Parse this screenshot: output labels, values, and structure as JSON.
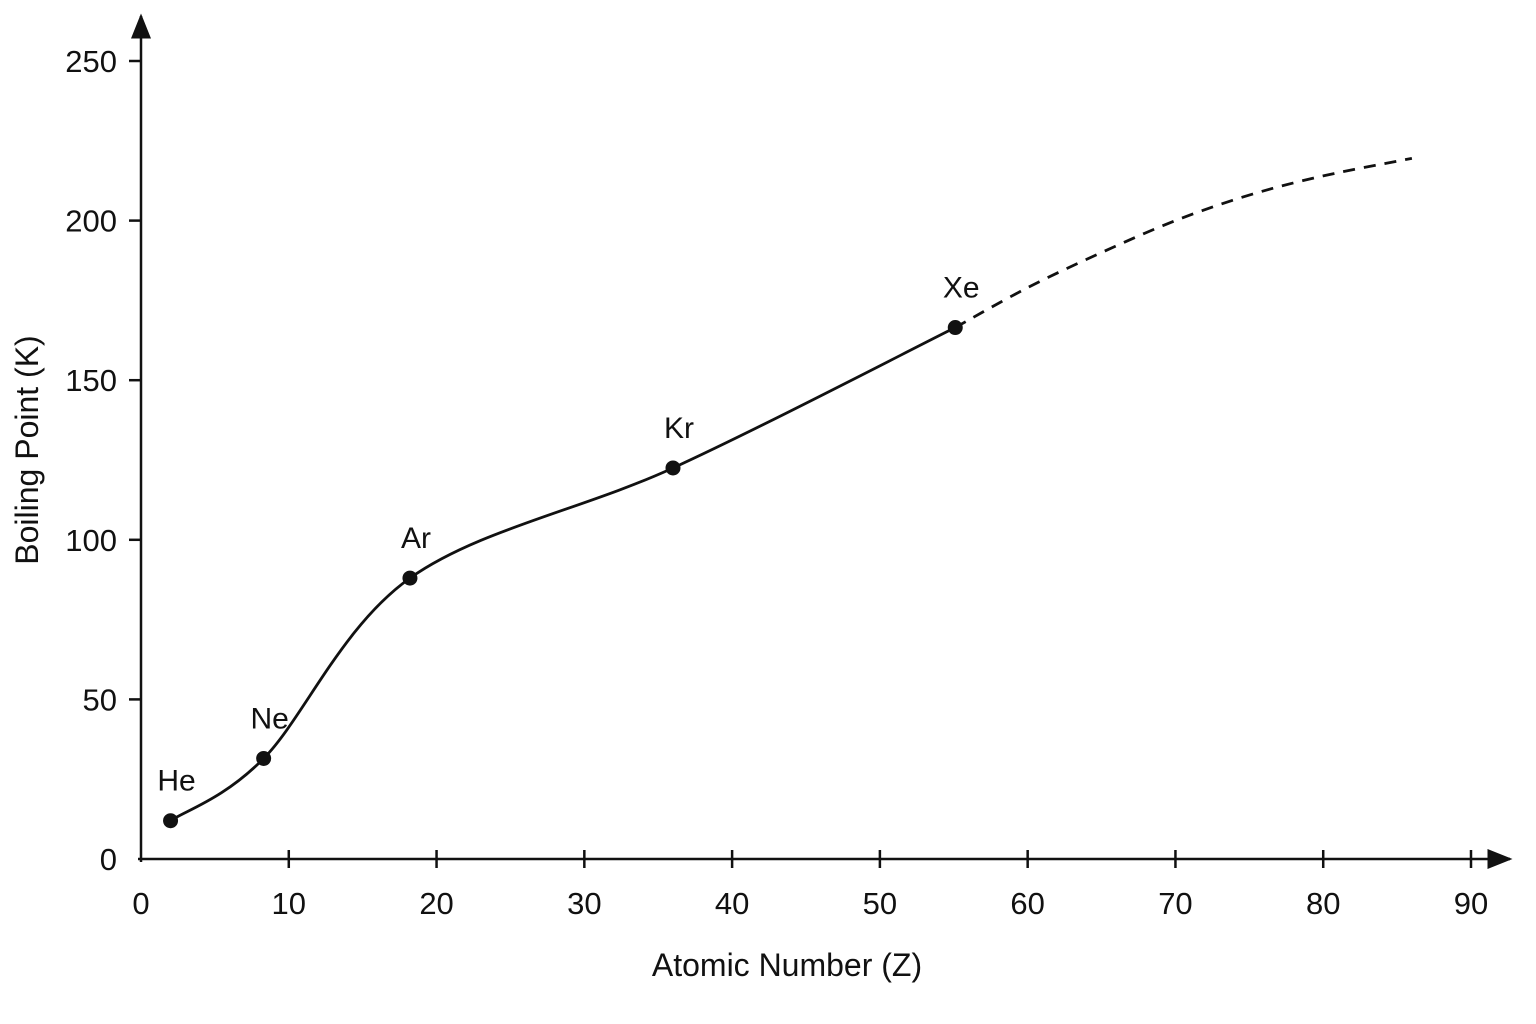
{
  "chart_data": {
    "type": "line",
    "title": "",
    "xlabel": "Atomic Number (Z)",
    "ylabel": "Boiling Point (K)",
    "xlim": [
      0,
      90
    ],
    "ylim": [
      0,
      250
    ],
    "xticks": [
      0,
      10,
      20,
      30,
      40,
      50,
      60,
      70,
      80,
      90
    ],
    "yticks": [
      0,
      50,
      100,
      150,
      200,
      250
    ],
    "grid": false,
    "legend": "none",
    "line_color": "#111111",
    "series": [
      {
        "style": "solid",
        "points": [
          {
            "label": "He",
            "x": 2,
            "y": 12
          },
          {
            "label": "Ne",
            "x": 8.3,
            "y": 31.5
          },
          {
            "label": "Ar",
            "x": 18.2,
            "y": 88
          },
          {
            "label": "Kr",
            "x": 36,
            "y": 122.5
          },
          {
            "label": "Xe",
            "x": 55.1,
            "y": 166.5
          }
        ]
      },
      {
        "style": "dashed",
        "points": [
          {
            "x": 55.1,
            "y": 166.5
          },
          {
            "x": 60,
            "y": 179
          },
          {
            "x": 65,
            "y": 190
          },
          {
            "x": 70,
            "y": 200
          },
          {
            "x": 75,
            "y": 208
          },
          {
            "x": 80,
            "y": 214
          },
          {
            "x": 86,
            "y": 219.5
          }
        ]
      }
    ]
  }
}
